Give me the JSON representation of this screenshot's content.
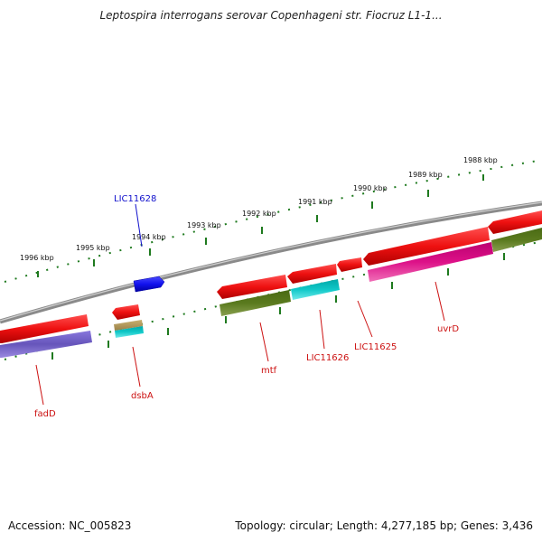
{
  "header": {
    "title": "Leptospira interrogans serovar Copenhageni str. Fiocruz L1-1..."
  },
  "footer": {
    "accession": "Accession: NC_005823",
    "topology": "Topology: circular; Length: 4,277,185 bp; Genes: 3,436"
  },
  "scale": {
    "labels": [
      "1996 kbp",
      "1995 kbp",
      "1994 kbp",
      "1993 kbp",
      "1992 kbp",
      "1991 kbp",
      "1990 kbp",
      "1989 kbp",
      "1988 kbp"
    ]
  },
  "colors": {
    "backbone": "#8a8a8a",
    "ticks": "#1f7a1f",
    "gene_forward": "#1111ee",
    "gene_reverse": "#ee1111",
    "cog_purple": "#6655bb",
    "cog_olive": "#5a7a1e",
    "cog_cyan": "#10c8c8",
    "cog_magenta": "#dd1188",
    "cog_tan": "#b8a060",
    "label_blue": "#1111cc",
    "label_red": "#cc1111"
  },
  "genes": [
    {
      "name": "LIC11628",
      "strand": "forward",
      "color": "blue"
    },
    {
      "name": "fadD",
      "strand": "reverse",
      "color": "red"
    },
    {
      "name": "dsbA",
      "strand": "reverse",
      "color": "red"
    },
    {
      "name": "mtf",
      "strand": "reverse",
      "color": "red"
    },
    {
      "name": "LIC11626",
      "strand": "reverse",
      "color": "red"
    },
    {
      "name": "LIC11625",
      "strand": "reverse",
      "color": "red"
    },
    {
      "name": "uvrD",
      "strand": "reverse",
      "color": "red"
    }
  ]
}
